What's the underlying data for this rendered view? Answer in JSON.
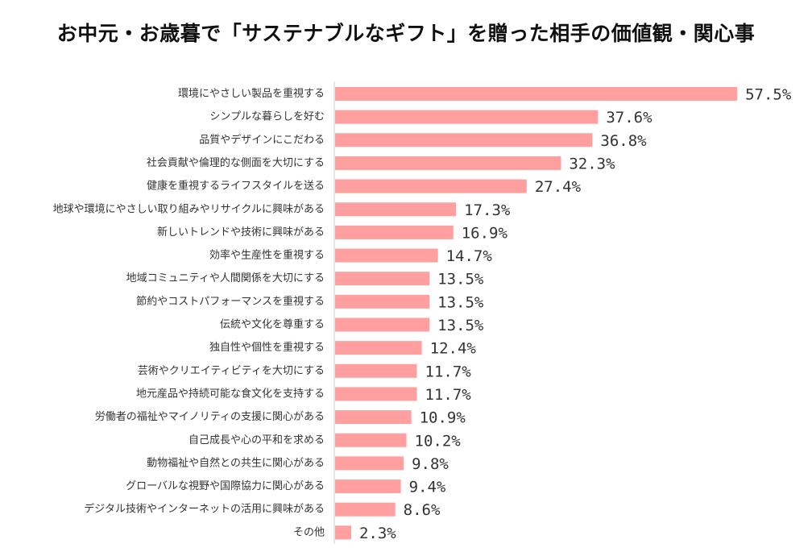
{
  "chart_data": {
    "type": "bar",
    "orientation": "horizontal",
    "title": "お中元・お歳暮で「サステナブルなギフト」を贈った相手の価値観・関心事",
    "categories": [
      "環境にやさしい製品を重視する",
      "シンプルな暮らしを好む",
      "品質やデザインにこだわる",
      "社会貢献や倫理的な側面を大切にする",
      "健康を重視するライフスタイルを送る",
      "地球や環境にやさしい取り組みやリサイクルに興味がある",
      "新しいトレンドや技術に興味がある",
      "効率や生産性を重視する",
      "地域コミュニティや人間関係を大切にする",
      "節約やコストパフォーマンスを重視する",
      "伝統や文化を尊重する",
      "独自性や個性を重視する",
      "芸術やクリエイティビティを大切にする",
      "地元産品や持続可能な食文化を支持する",
      "労働者の福祉やマイノリティの支援に関心がある",
      "自己成長や心の平和を求める",
      "動物福祉や自然との共生に関心がある",
      "グローバルな視野や国際協力に関心がある",
      "デジタル技術やインターネットの活用に興味がある",
      "その他"
    ],
    "values": [
      57.5,
      37.6,
      36.8,
      32.3,
      27.4,
      17.3,
      16.9,
      14.7,
      13.5,
      13.5,
      13.5,
      12.4,
      11.7,
      11.7,
      10.9,
      10.2,
      9.8,
      9.4,
      8.6,
      2.3
    ],
    "value_labels": [
      "57.5%",
      "37.6%",
      "36.8%",
      "32.3%",
      "27.4%",
      "17.3%",
      "16.9%",
      "14.7%",
      "13.5%",
      "13.5%",
      "13.5%",
      "12.4%",
      "11.7%",
      "11.7%",
      "10.9%",
      "10.2%",
      "9.8%",
      "9.4%",
      "8.6%",
      "2.3%"
    ],
    "bar_color": "#ff9f9f",
    "axis_color": "#cccccc",
    "grid": false,
    "legend": "none"
  }
}
